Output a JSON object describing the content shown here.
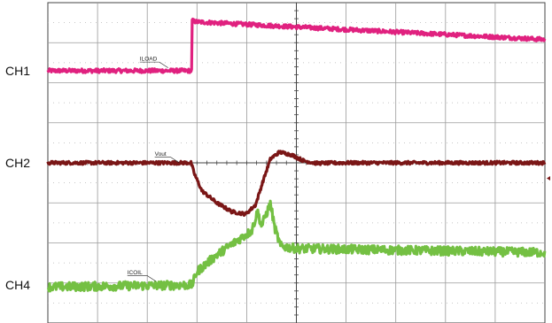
{
  "chart_data": {
    "type": "line",
    "title": "",
    "xlabel": "",
    "ylabel": "",
    "grid": true,
    "x_divisions": 10,
    "y_divisions": 8,
    "xlim": [
      0,
      10
    ],
    "ylim": [
      0,
      8
    ],
    "center_axes": true,
    "channel_labels": [
      {
        "name": "CH1",
        "level": 6.3
      },
      {
        "name": "CH2",
        "level": 4.0
      },
      {
        "name": "CH4",
        "level": 0.95
      }
    ],
    "series": [
      {
        "name": "ILOAD",
        "color": "#e0217f",
        "noise": 0.05,
        "points": [
          [
            0,
            6.3
          ],
          [
            2.9,
            6.3
          ],
          [
            2.9,
            7.55
          ],
          [
            3.0,
            7.52
          ],
          [
            6.0,
            7.33
          ],
          [
            10.0,
            7.08
          ]
        ],
        "annotation": {
          "text": "ILOAD",
          "x": 1.85,
          "y": 6.55
        }
      },
      {
        "name": "Vout",
        "color": "#7a1616",
        "noise": 0.04,
        "points": [
          [
            0,
            4.0
          ],
          [
            2.88,
            4.0
          ],
          [
            2.95,
            3.72
          ],
          [
            3.1,
            3.3
          ],
          [
            3.4,
            3.0
          ],
          [
            3.7,
            2.78
          ],
          [
            3.98,
            2.72
          ],
          [
            4.18,
            2.95
          ],
          [
            4.33,
            3.55
          ],
          [
            4.48,
            4.1
          ],
          [
            4.66,
            4.27
          ],
          [
            4.9,
            4.2
          ],
          [
            5.15,
            4.05
          ],
          [
            5.4,
            3.99
          ],
          [
            6.0,
            4.0
          ],
          [
            10.0,
            4.0
          ]
        ],
        "annotation": {
          "text": "Vout",
          "x": 2.15,
          "y": 4.18
        }
      },
      {
        "name": "ICOIL",
        "color": "#74c043",
        "noise": 0.11,
        "points": [
          [
            0,
            0.9
          ],
          [
            2.9,
            0.95
          ],
          [
            3.0,
            1.28
          ],
          [
            3.4,
            1.7
          ],
          [
            3.8,
            2.05
          ],
          [
            4.1,
            2.3
          ],
          [
            4.22,
            2.78
          ],
          [
            4.3,
            2.42
          ],
          [
            4.38,
            2.68
          ],
          [
            4.48,
            2.98
          ],
          [
            4.56,
            2.4
          ],
          [
            4.68,
            1.92
          ],
          [
            5.0,
            1.86
          ],
          [
            6.0,
            1.84
          ],
          [
            10.0,
            1.76
          ]
        ],
        "annotation": {
          "text": "ICOIL",
          "x": 1.6,
          "y": 1.22
        }
      }
    ]
  }
}
